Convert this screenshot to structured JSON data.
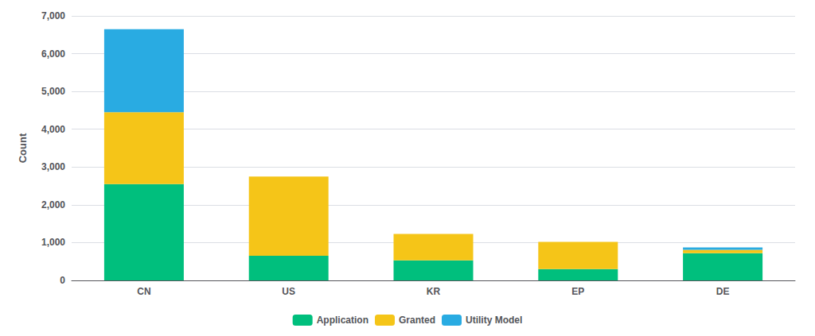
{
  "chart_data": {
    "type": "bar",
    "stacked": true,
    "categories": [
      "CN",
      "US",
      "KR",
      "EP",
      "DE"
    ],
    "series": [
      {
        "name": "Application",
        "color": "#00BF7D",
        "values": [
          2550,
          650,
          530,
          300,
          720
        ]
      },
      {
        "name": "Granted",
        "color": "#F5C518",
        "values": [
          1900,
          2100,
          700,
          720,
          90
        ]
      },
      {
        "name": "Utility Model",
        "color": "#29ABE2",
        "values": [
          2200,
          0,
          0,
          0,
          60
        ]
      }
    ],
    "ylabel": "Count",
    "ylim": [
      0,
      7000
    ],
    "yticks": [
      0,
      1000,
      2000,
      3000,
      4000,
      5000,
      6000,
      7000
    ],
    "grid": true,
    "legend": "bottom"
  }
}
